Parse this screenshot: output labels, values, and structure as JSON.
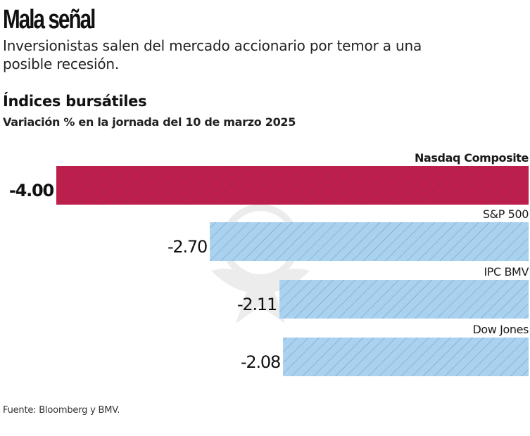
{
  "header": {
    "title": "Mala señal",
    "subtitle": "Inversionistas salen del mercado accionario por temor a una posible recesión."
  },
  "footer": {
    "source": "Fuente: Bloomberg y BMV."
  },
  "colors": {
    "highlight": "#be1e4b",
    "default": "#a9d2f0",
    "hatch": "#4a5a6a"
  },
  "chart_data": {
    "type": "bar",
    "orientation": "horizontal",
    "title": "Índices bursátiles",
    "subtitle": "Variación % en la jornada del 10 de marzo 2025",
    "xlabel": "",
    "ylabel": "",
    "grid": false,
    "categories": [
      "Nasdaq Composite",
      "S&P 500",
      "IPC BMV",
      "Dow Jones"
    ],
    "values": [
      -4.0,
      -2.7,
      -2.11,
      -2.08
    ],
    "value_labels": [
      "-4.00",
      "-2.70",
      "-2.11",
      "-2.08"
    ],
    "highlighted": [
      true,
      false,
      false,
      false
    ],
    "xlim": [
      -4.0,
      0
    ]
  }
}
